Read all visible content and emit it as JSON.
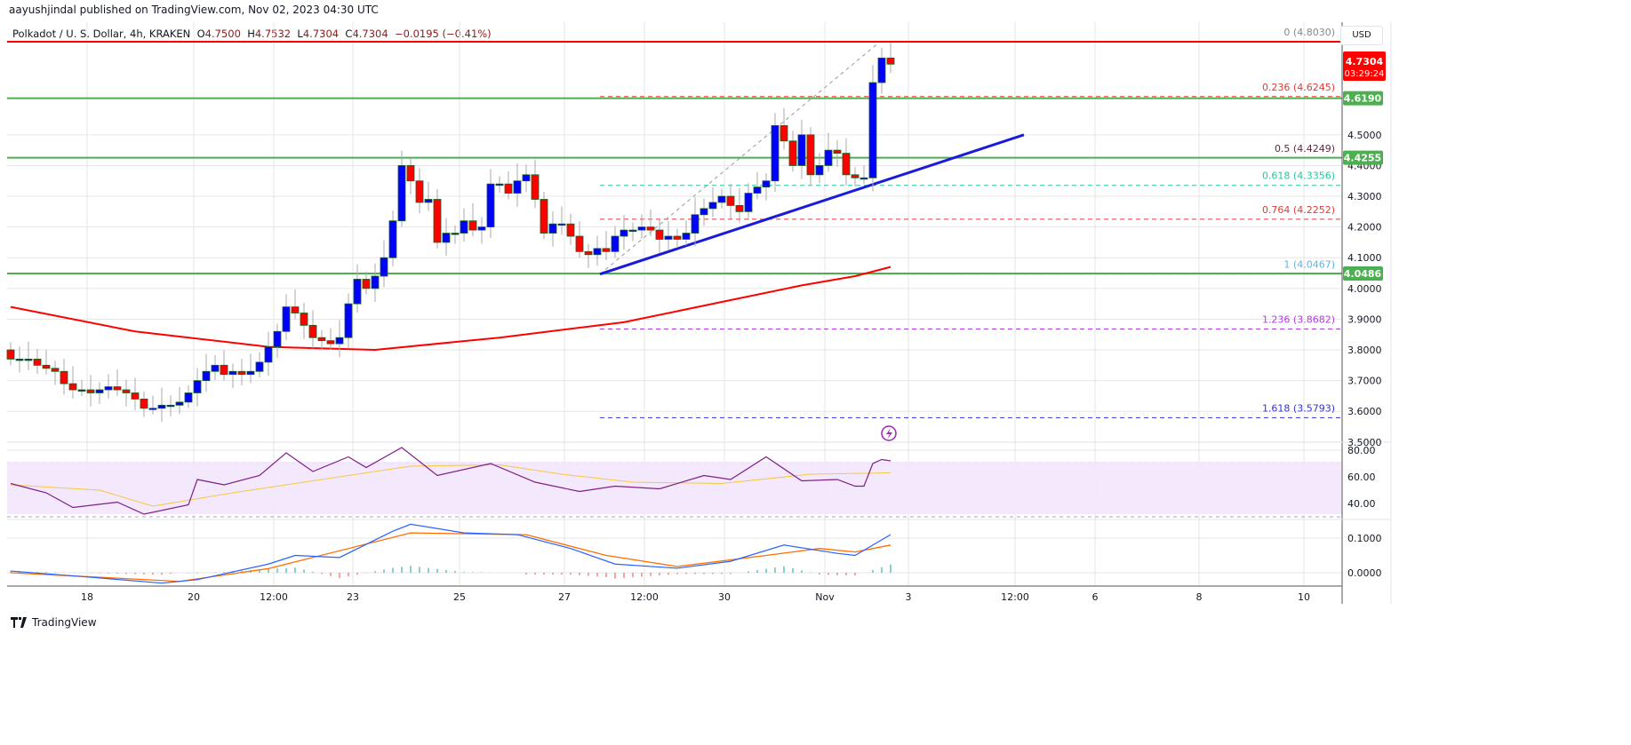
{
  "header": {
    "published": "aayushjindal published on TradingView.com, Nov 02, 2023 04:30 UTC"
  },
  "legend": {
    "symbol": "Polkadot / U. S. Dollar, 4h, KRAKEN",
    "o_label": "O",
    "o": "4.7500",
    "h_label": "H",
    "h": "4.7532",
    "l_label": "L",
    "l": "4.7304",
    "c_label": "C",
    "c": "4.7304",
    "change": "−0.0195 (−0.41%)"
  },
  "currency": "USD",
  "price_tag": {
    "price": "4.7304",
    "countdown": "03:29:24"
  },
  "footer": {
    "brand": "TradingView"
  },
  "colors": {
    "up": "#0000ff",
    "down": "#ff0000",
    "support": "#4caf50",
    "sma": "#ff0000",
    "trend": "#1a1adb"
  },
  "chart_data": [
    {
      "type": "candlestick",
      "title": "Polkadot / U. S. Dollar, 4h, KRAKEN",
      "ylim": [
        3.5,
        4.85
      ],
      "y_ticks": [
        "4.5000",
        "4.4000",
        "4.3000",
        "4.2000",
        "4.1000",
        "4.0000",
        "3.9000",
        "3.8000",
        "3.7000",
        "3.6000",
        "3.5000"
      ],
      "x_ticks": [
        "18",
        "20",
        "12:00",
        "23",
        "25",
        "27",
        "12:00",
        "30",
        "Nov",
        "3",
        "12:00",
        "6",
        "8",
        "10"
      ],
      "first_open": 3.8,
      "closes": [
        3.77,
        3.77,
        3.77,
        3.75,
        3.74,
        3.73,
        3.69,
        3.67,
        3.67,
        3.66,
        3.67,
        3.68,
        3.67,
        3.66,
        3.64,
        3.61,
        3.61,
        3.62,
        3.62,
        3.63,
        3.66,
        3.7,
        3.73,
        3.75,
        3.72,
        3.73,
        3.72,
        3.73,
        3.76,
        3.81,
        3.86,
        3.94,
        3.92,
        3.88,
        3.84,
        3.83,
        3.82,
        3.84,
        3.95,
        4.03,
        4.0,
        4.04,
        4.1,
        4.22,
        4.4,
        4.35,
        4.28,
        4.29,
        4.15,
        4.18,
        4.18,
        4.22,
        4.19,
        4.2,
        4.34,
        4.34,
        4.31,
        4.35,
        4.37,
        4.29,
        4.18,
        4.21,
        4.21,
        4.17,
        4.12,
        4.11,
        4.13,
        4.12,
        4.17,
        4.19,
        4.19,
        4.2,
        4.19,
        4.16,
        4.17,
        4.16,
        4.18,
        4.24,
        4.26,
        4.28,
        4.3,
        4.27,
        4.25,
        4.31,
        4.33,
        4.35,
        4.53,
        4.48,
        4.4,
        4.5,
        4.37,
        4.4,
        4.45,
        4.44,
        4.37,
        4.36,
        4.36,
        4.67,
        4.75,
        4.73
      ],
      "sma100": [
        [
          0,
          3.94
        ],
        [
          14,
          3.86
        ],
        [
          29,
          3.81
        ],
        [
          41,
          3.8
        ],
        [
          55,
          3.84
        ],
        [
          69,
          3.89
        ],
        [
          79,
          3.95
        ],
        [
          89,
          4.01
        ],
        [
          95,
          4.04
        ],
        [
          99,
          4.07
        ]
      ],
      "horizontal_levels": [
        {
          "label": "4.6190",
          "value": 4.619
        },
        {
          "label": "4.4255",
          "value": 4.4255
        },
        {
          "label": "4.0486",
          "value": 4.0486
        }
      ],
      "resistance": 4.803,
      "trend_line": [
        [
          66.3,
          4.0467
        ],
        [
          114,
          4.5
        ]
      ],
      "fibonacci": [
        {
          "label": "0 (4.8030)",
          "value": 4.803,
          "color": "#888888"
        },
        {
          "label": "0.236 (4.6245)",
          "value": 4.6245,
          "color": "#e53935"
        },
        {
          "label": "0.5 (4.4249)",
          "value": 4.4249,
          "color": "#5d2a3a"
        },
        {
          "label": "0.618 (4.3356)",
          "value": 4.3356,
          "color": "#26c6a0"
        },
        {
          "label": "0.764 (4.2252)",
          "value": 4.2252,
          "color": "#e53935"
        },
        {
          "label": "1 (4.0467)",
          "value": 4.0467,
          "color": "#5fb4e0"
        },
        {
          "label": "1.236 (3.8682)",
          "value": 3.8682,
          "color": "#b03ee0"
        },
        {
          "label": "1.618 (3.5793)",
          "value": 3.5793,
          "color": "#3333dd"
        }
      ]
    },
    {
      "type": "line",
      "title": "RSI",
      "ylim": [
        30,
        90
      ],
      "y_ticks": [
        "80.00",
        "60.00",
        "40.00"
      ],
      "band": [
        30,
        70
      ],
      "rsi": [
        [
          0,
          55
        ],
        [
          4,
          48
        ],
        [
          7,
          37
        ],
        [
          12,
          41
        ],
        [
          15,
          32
        ],
        [
          20,
          39
        ],
        [
          21,
          58
        ],
        [
          24,
          54
        ],
        [
          28,
          61
        ],
        [
          31,
          78
        ],
        [
          34,
          64
        ],
        [
          38,
          75
        ],
        [
          40,
          67
        ],
        [
          44,
          82
        ],
        [
          48,
          61
        ],
        [
          54,
          70
        ],
        [
          59,
          56
        ],
        [
          64,
          49
        ],
        [
          68,
          53
        ],
        [
          73,
          51
        ],
        [
          78,
          61
        ],
        [
          81,
          58
        ],
        [
          85,
          75
        ],
        [
          89,
          57
        ],
        [
          93,
          58
        ],
        [
          95,
          53
        ],
        [
          96,
          53
        ],
        [
          97,
          70
        ],
        [
          98,
          73
        ],
        [
          99,
          72
        ]
      ],
      "signal": [
        [
          0,
          54
        ],
        [
          10,
          50
        ],
        [
          16,
          38
        ],
        [
          25,
          48
        ],
        [
          35,
          58
        ],
        [
          45,
          68
        ],
        [
          55,
          69
        ],
        [
          62,
          62
        ],
        [
          70,
          56
        ],
        [
          80,
          55
        ],
        [
          90,
          62
        ],
        [
          99,
          63
        ]
      ]
    },
    {
      "type": "line",
      "title": "MACD",
      "ylim": [
        -0.05,
        0.15
      ],
      "y_ticks": [
        "0.1000",
        "0.0000"
      ],
      "macd": [
        [
          0,
          0.005
        ],
        [
          9,
          -0.013
        ],
        [
          17,
          -0.03
        ],
        [
          21,
          -0.02
        ],
        [
          29,
          0.025
        ],
        [
          32,
          0.05
        ],
        [
          37,
          0.044
        ],
        [
          43,
          0.12
        ],
        [
          45,
          0.14
        ],
        [
          51,
          0.115
        ],
        [
          57,
          0.11
        ],
        [
          63,
          0.07
        ],
        [
          68,
          0.025
        ],
        [
          75,
          0.013
        ],
        [
          81,
          0.033
        ],
        [
          87,
          0.08
        ],
        [
          93,
          0.056
        ],
        [
          95,
          0.05
        ],
        [
          99,
          0.11
        ]
      ],
      "signal": [
        [
          0,
          0
        ],
        [
          19,
          -0.025
        ],
        [
          29,
          0.012
        ],
        [
          45,
          0.115
        ],
        [
          58,
          0.11
        ],
        [
          67,
          0.05
        ],
        [
          75,
          0.018
        ],
        [
          85,
          0.05
        ],
        [
          91,
          0.07
        ],
        [
          95,
          0.06
        ],
        [
          99,
          0.08
        ]
      ]
    }
  ]
}
